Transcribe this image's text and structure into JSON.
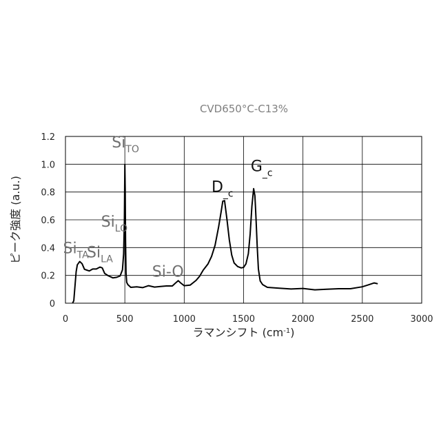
{
  "chart_data": {
    "type": "line",
    "title": "CVD650°C-C13%",
    "xlabel": "ラマンシフト (cm",
    "xlabel_sup": "-1",
    "xlabel_close": ")",
    "ylabel": "ピーク強度 (a.u.)",
    "xlim": [
      0,
      3000
    ],
    "ylim": [
      0,
      1.2
    ],
    "x_ticks": [
      "0",
      "500",
      "1000",
      "1500",
      "2000",
      "2500",
      "3000"
    ],
    "y_ticks": [
      "0",
      "0.2",
      "0.4",
      "0.6",
      "0.8",
      "1.0",
      "1.2"
    ],
    "grid": true,
    "legend": "none",
    "series": [
      {
        "color": "#000000",
        "x": [
          60,
          70,
          80,
          90,
          100,
          120,
          140,
          160,
          180,
          200,
          230,
          260,
          290,
          310,
          330,
          360,
          400,
          430,
          460,
          480,
          490,
          496,
          500,
          503,
          506,
          510,
          516,
          525,
          550,
          600,
          650,
          700,
          750,
          800,
          850,
          900,
          930,
          950,
          970,
          1000,
          1050,
          1100,
          1130,
          1160,
          1200,
          1230,
          1260,
          1290,
          1310,
          1325,
          1340,
          1360,
          1380,
          1400,
          1420,
          1450,
          1480,
          1500,
          1520,
          1540,
          1555,
          1570,
          1585,
          1595,
          1600,
          1605,
          1615,
          1625,
          1640,
          1660,
          1700,
          1800,
          1900,
          2000,
          2100,
          2200,
          2300,
          2400,
          2500,
          2550,
          2600,
          2630
        ],
        "y": [
          0.0,
          0.02,
          0.12,
          0.22,
          0.28,
          0.3,
          0.28,
          0.25,
          0.24,
          0.23,
          0.24,
          0.25,
          0.26,
          0.25,
          0.22,
          0.2,
          0.18,
          0.18,
          0.2,
          0.24,
          0.35,
          0.6,
          1.0,
          0.82,
          0.45,
          0.22,
          0.15,
          0.13,
          0.12,
          0.12,
          0.11,
          0.12,
          0.12,
          0.12,
          0.12,
          0.13,
          0.15,
          0.16,
          0.14,
          0.13,
          0.13,
          0.16,
          0.2,
          0.24,
          0.28,
          0.33,
          0.42,
          0.55,
          0.65,
          0.74,
          0.74,
          0.6,
          0.45,
          0.35,
          0.29,
          0.26,
          0.26,
          0.26,
          0.28,
          0.35,
          0.5,
          0.7,
          0.82,
          0.78,
          0.7,
          0.6,
          0.4,
          0.25,
          0.16,
          0.13,
          0.12,
          0.11,
          0.1,
          0.1,
          0.1,
          0.1,
          0.1,
          0.11,
          0.12,
          0.13,
          0.14,
          0.14
        ]
      }
    ],
    "annotations": [
      {
        "text": "Si",
        "sub": "TO",
        "x": 390,
        "y": 1.12,
        "style": "grey"
      },
      {
        "text": "Si",
        "sub": "LO",
        "x": 300,
        "y": 0.55,
        "style": "grey"
      },
      {
        "text": "Si",
        "sub": "TA",
        "x": -20,
        "y": 0.36,
        "style": "grey"
      },
      {
        "text": "Si",
        "sub": "LA",
        "x": 180,
        "y": 0.33,
        "style": "grey"
      },
      {
        "text": "Si-O",
        "sub": "",
        "x": 730,
        "y": 0.19,
        "style": "grey"
      },
      {
        "text": "D",
        "sub": "_c",
        "x": 1230,
        "y": 0.8,
        "style": "black"
      },
      {
        "text": "G",
        "sub": "_c",
        "x": 1560,
        "y": 0.95,
        "style": "black"
      }
    ]
  }
}
